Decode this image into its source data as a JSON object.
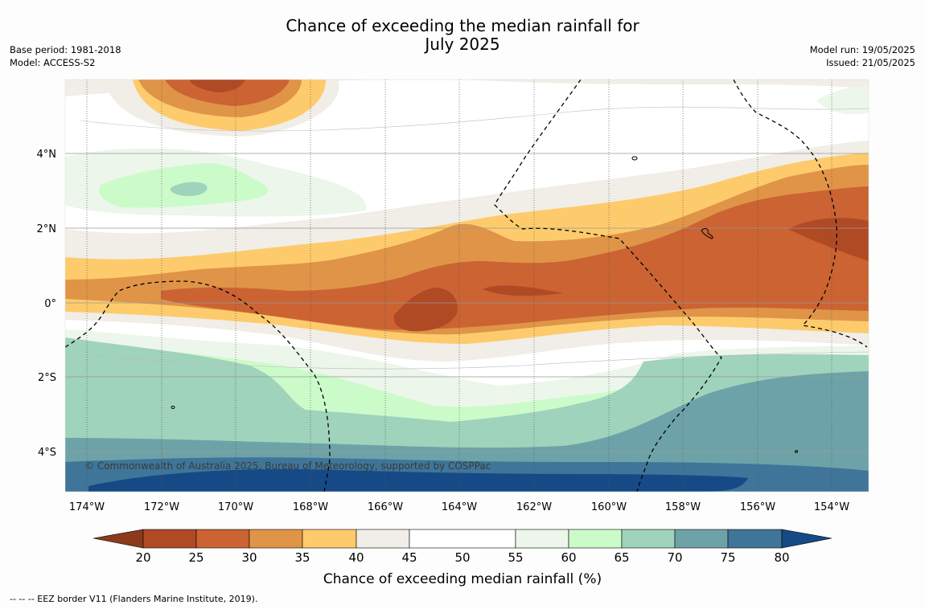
{
  "title_line1": "Chance of exceeding the median rainfall for",
  "title_line2": "July 2025",
  "meta_left": {
    "base_period": "Base period: 1981-2018",
    "model": "Model: ACCESS-S2"
  },
  "meta_right": {
    "model_run": "Model run: 19/05/2025",
    "issued": "Issued: 21/05/2025"
  },
  "copyright": "© Commonwealth of Australia 2025, Bureau of Meteorology, supported by COSPPac",
  "lon_labels": [
    "174°W",
    "172°W",
    "170°W",
    "168°W",
    "166°W",
    "164°W",
    "162°W",
    "160°W",
    "158°W",
    "156°W",
    "154°W"
  ],
  "lat_labels": [
    "4°N",
    "2°N",
    "0°",
    "2°S",
    "4°S"
  ],
  "colorbar": {
    "label": "Chance of exceeding median rainfall (%)",
    "ticks": [
      "20",
      "25",
      "30",
      "35",
      "40",
      "45",
      "50",
      "55",
      "60",
      "65",
      "70",
      "75",
      "80"
    ],
    "colors": {
      "below20": "#8c3a1c",
      "b20_25": "#b04a25",
      "b25_30": "#cb6332",
      "b30_35": "#e09448",
      "b35_40": "#fdcb6c",
      "b40_45": "#f1ede7",
      "b45_55": "#ffffff",
      "b55_60": "#ecf6ea",
      "b60_65": "#ccfbca",
      "b65_70": "#9fd3bb",
      "b70_75": "#6da3a8",
      "b75_80": "#3f7599",
      "above80": "#164a86"
    }
  },
  "footnote": "-- -- -- EEZ border V11 (Flanders Marine Institute, 2019)."
}
